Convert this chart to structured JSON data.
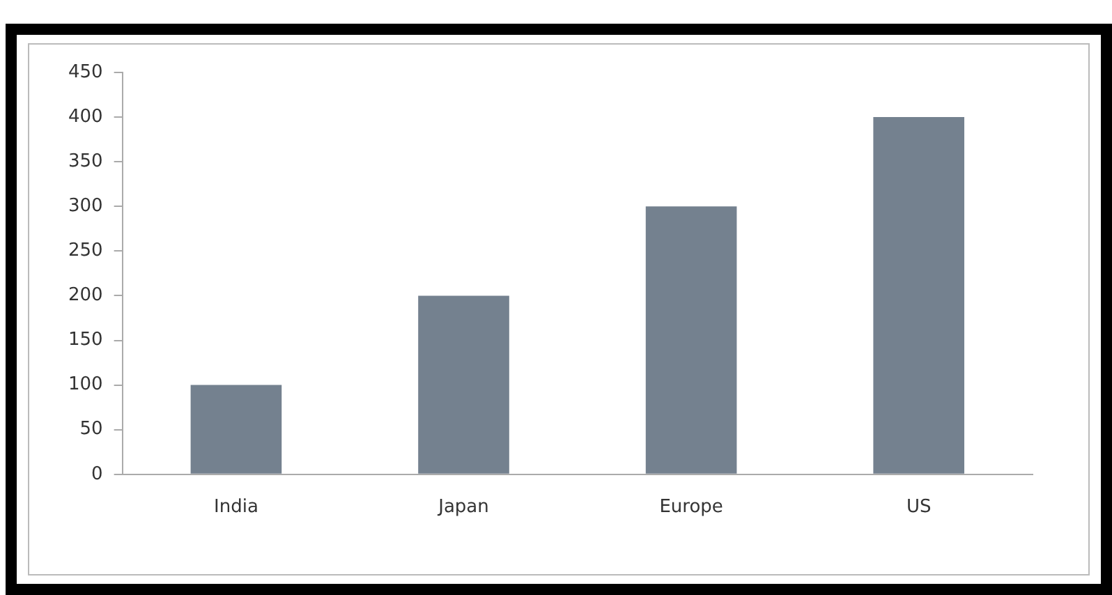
{
  "chart_data": {
    "type": "bar",
    "categories": [
      "India",
      "Japan",
      "Europe",
      "US"
    ],
    "values": [
      100,
      200,
      300,
      400
    ],
    "color": "#74818f",
    "ylim": [
      0,
      450
    ],
    "yticks": [
      0,
      50,
      100,
      150,
      200,
      250,
      300,
      350,
      400,
      450
    ],
    "grid": false,
    "legend": false
  }
}
